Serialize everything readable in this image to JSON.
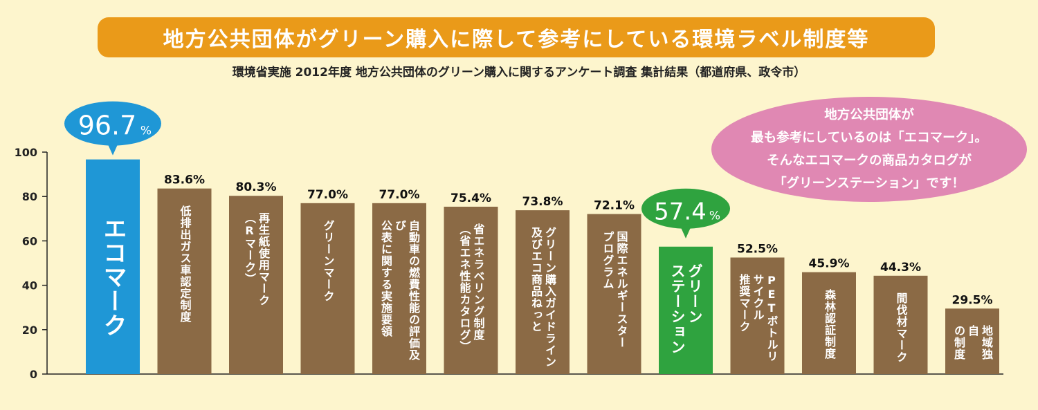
{
  "title": "地方公共団体がグリーン購入に際して参考にしている環境ラベル制度等",
  "subtitle": "環境省実施 2012年度 地方公共団体のグリーン購入に関するアンケート調査 集計結果（都道府県、政令市）",
  "callout": {
    "lines": [
      "地方公共団体が",
      "最も参考にしているのは「エコマーク」。",
      "そんなエコマークの商品カタログが",
      "「グリーンステーション」です！"
    ]
  },
  "colors": {
    "background": "#fdf5cd",
    "banner": "#ea9a19",
    "bar_default": "#8b6a45",
    "bar_ecomark": "#1f97d6",
    "bar_green_station": "#2fa33f",
    "callout": "#e088b3"
  },
  "chart_data": {
    "type": "bar",
    "ylim": [
      0,
      100
    ],
    "yticks": [
      0,
      20,
      40,
      60,
      80,
      100
    ],
    "categories": [
      "エコマーク",
      "低排出ガス車認定制度",
      "再生紙使用マーク（Rマーク）",
      "グリーンマーク",
      "自動車の燃費性能の評価及び公表に関する実施要領",
      "省エネラベリング制度（省エネ性能カタログ）",
      "グリーン購入ガイドライン及びエコ商品ねっと",
      "国際エネルギースタープログラム",
      "グリーンステーション",
      "PETボトルリサイクル推奨マーク",
      "森林認証制度",
      "間伐材マーク",
      "地域独自の制度"
    ],
    "label_lines": [
      [
        "エコマーク"
      ],
      [
        "低排出ガス車認定制度"
      ],
      [
        "再生紙使用マーク",
        "（Rマーク）"
      ],
      [
        "グリーンマーク"
      ],
      [
        "自動車の燃費性能の評価及び",
        "公表に関する実施要領"
      ],
      [
        "省エネラベリング制度",
        "（省エネ性能カタログ）"
      ],
      [
        "グリーン購入ガイドライン",
        "及びエコ商品ねっと"
      ],
      [
        "国際エネルギースター",
        "プログラム"
      ],
      [
        "グリーン",
        "ステーション"
      ],
      [
        "PETボトルリサイクル",
        "推奨マーク"
      ],
      [
        "森林認証制度"
      ],
      [
        "間伐材マーク"
      ],
      [
        "地域独自",
        "の制度"
      ]
    ],
    "values": [
      96.7,
      83.6,
      80.3,
      77.0,
      77.0,
      75.4,
      73.8,
      72.1,
      57.4,
      52.5,
      45.9,
      44.3,
      29.5
    ],
    "value_labels": [
      "96.7",
      "83.6%",
      "80.3%",
      "77.0%",
      "77.0%",
      "75.4%",
      "73.8%",
      "72.1%",
      "57.4",
      "52.5%",
      "45.9%",
      "44.3%",
      "29.5%"
    ],
    "highlight_unit": "%",
    "highlights": [
      0,
      8
    ]
  }
}
